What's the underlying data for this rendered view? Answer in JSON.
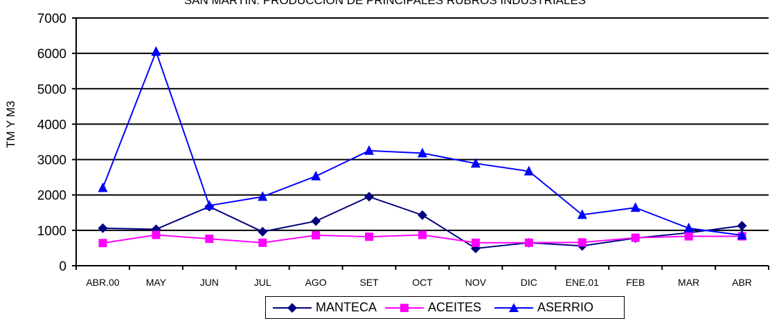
{
  "chart_data": {
    "type": "line",
    "title": "SAN MARTIN: PRODUCCION DE PRINCIPALES RUBROS INDUSTRIALES",
    "xlabel": "",
    "ylabel": "TM Y M3",
    "ylim": [
      0,
      7000
    ],
    "yticks": [
      0,
      1000,
      2000,
      3000,
      4000,
      5000,
      6000,
      7000
    ],
    "grid": true,
    "legend_position": "bottom",
    "categories": [
      "ABR.00",
      "MAY",
      "JUN",
      "JUL",
      "AGO",
      "SET",
      "OCT",
      "NOV",
      "DIC",
      "ENE.01",
      "FEB",
      "MAR",
      "ABR"
    ],
    "series": [
      {
        "name": "MANTECA",
        "color": "#000080",
        "marker": "diamond",
        "values": [
          1060,
          1030,
          1670,
          960,
          1260,
          1950,
          1430,
          490,
          650,
          560,
          780,
          930,
          1130
        ]
      },
      {
        "name": "ACEITES",
        "color": "#ff00ff",
        "marker": "square",
        "values": [
          640,
          870,
          760,
          650,
          860,
          820,
          870,
          650,
          650,
          660,
          790,
          830,
          830
        ]
      },
      {
        "name": "ASERRIO",
        "color": "#0000ff",
        "marker": "triangle",
        "values": [
          2200,
          6050,
          1700,
          1950,
          2530,
          3250,
          3180,
          2890,
          2670,
          1440,
          1640,
          1060,
          860
        ]
      }
    ]
  }
}
